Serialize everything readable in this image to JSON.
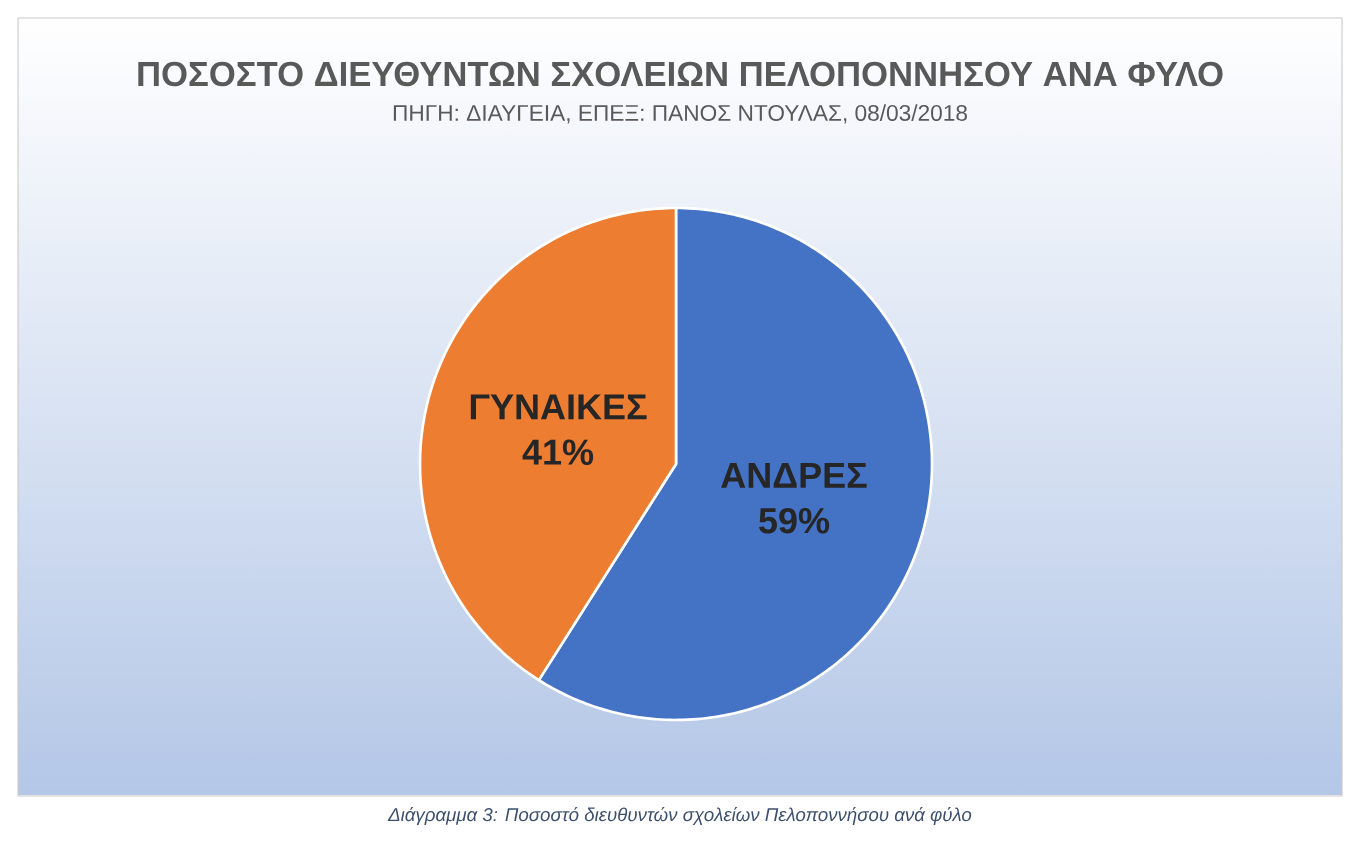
{
  "chart_data": {
    "type": "pie",
    "title": "ΠΟΣΟΣΤΟ ΔΙΕΥΘΥΝΤΩΝ ΣΧΟΛΕΙΩΝ ΠΕΛΟΠΟΝΝΗΣΟΥ ΑΝΑ ΦΥΛΟ",
    "subtitle": "ΠΗΓΗ: ΔΙΑΥΓΕΙΑ, ΕΠΕΞ: ΠΑΝΟΣ ΝΤΟΥΛΑΣ, 08/03/2018",
    "categories": [
      "ΑΝΔΡΕΣ",
      "ΓΥΝΑΙΚΕΣ"
    ],
    "values": [
      59,
      41
    ],
    "colors": [
      "#4472c4",
      "#ed7d31"
    ],
    "value_labels": [
      "59%",
      "41%"
    ],
    "annotations": [
      "Διάγραμμα 3: Ποσοστό διευθυντών σχολείων Πελοποννήσου ανά φύλο"
    ]
  }
}
